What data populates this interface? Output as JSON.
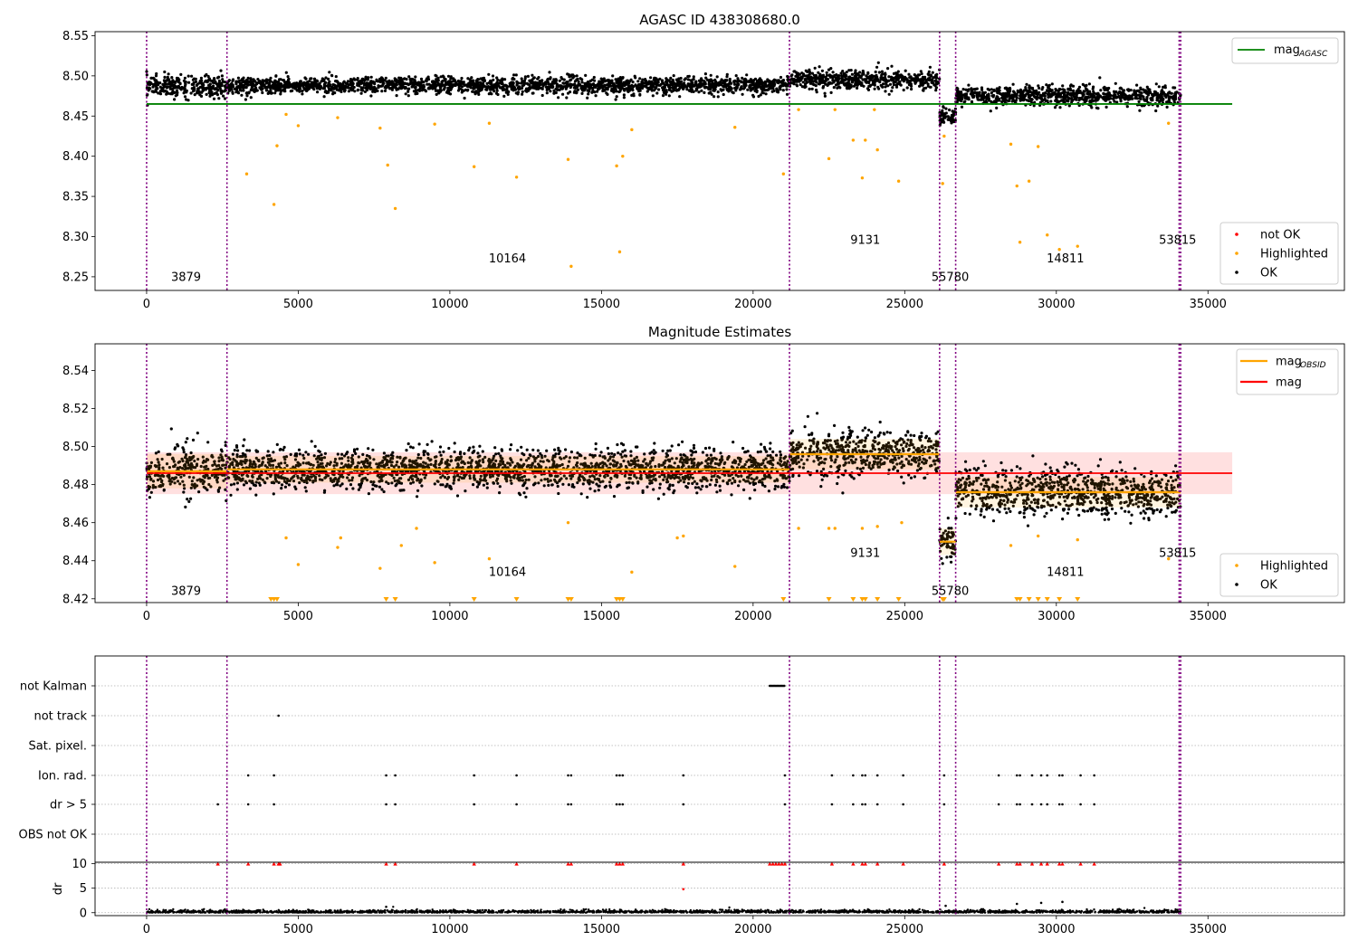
{
  "chart_data": [
    {
      "type": "scatter",
      "title": "AGASC ID 438308680.0",
      "xlim": [
        -1700,
        39500
      ],
      "ylim": [
        8.233,
        8.555
      ],
      "xticks": [
        0,
        5000,
        10000,
        15000,
        20000,
        25000,
        30000,
        35000
      ],
      "yticks": [
        8.25,
        8.3,
        8.35,
        8.4,
        8.45,
        8.5,
        8.55
      ],
      "ytick_labels": [
        "8.25",
        "8.30",
        "8.35",
        "8.40",
        "8.45",
        "8.50",
        "8.55"
      ],
      "vlines": [
        0,
        2650,
        21200,
        26150,
        26680,
        34050,
        34100
      ],
      "hline": {
        "name": "mag_AGASC",
        "y": 8.465,
        "x_range": [
          0,
          35800
        ],
        "color": "#008000"
      },
      "obs_segments": [
        {
          "x0": 0,
          "x1": 2650,
          "level": 8.487,
          "spread": 0.009
        },
        {
          "x0": 2650,
          "x1": 21200,
          "level": 8.488,
          "spread": 0.007
        },
        {
          "x0": 21200,
          "x1": 26150,
          "level": 8.495,
          "spread": 0.008
        },
        {
          "x0": 26150,
          "x1": 26680,
          "level": 8.45,
          "spread": 0.007
        },
        {
          "x0": 26680,
          "x1": 34100,
          "level": 8.475,
          "spread": 0.008
        }
      ],
      "highlighted_points": [
        [
          3300,
          8.378
        ],
        [
          4200,
          8.34
        ],
        [
          4300,
          8.413
        ],
        [
          4600,
          8.452
        ],
        [
          5000,
          8.438
        ],
        [
          6300,
          8.448
        ],
        [
          7700,
          8.435
        ],
        [
          7950,
          8.389
        ],
        [
          8200,
          8.335
        ],
        [
          9500,
          8.44
        ],
        [
          10800,
          8.387
        ],
        [
          11300,
          8.441
        ],
        [
          12200,
          8.374
        ],
        [
          13900,
          8.396
        ],
        [
          14000,
          8.263
        ],
        [
          15500,
          8.388
        ],
        [
          15600,
          8.281
        ],
        [
          15700,
          8.4
        ],
        [
          16000,
          8.433
        ],
        [
          19400,
          8.436
        ],
        [
          21000,
          8.378
        ],
        [
          21500,
          8.458
        ],
        [
          22500,
          8.397
        ],
        [
          22700,
          8.458
        ],
        [
          23300,
          8.42
        ],
        [
          23600,
          8.373
        ],
        [
          23700,
          8.42
        ],
        [
          24100,
          8.408
        ],
        [
          24000,
          8.458
        ],
        [
          24800,
          8.369
        ],
        [
          26300,
          8.425
        ],
        [
          26250,
          8.366
        ],
        [
          28500,
          8.415
        ],
        [
          28700,
          8.363
        ],
        [
          28800,
          8.293
        ],
        [
          29100,
          8.369
        ],
        [
          29400,
          8.412
        ],
        [
          29700,
          8.302
        ],
        [
          30100,
          8.284
        ],
        [
          30700,
          8.288
        ],
        [
          33700,
          8.441
        ]
      ],
      "annotations": [
        {
          "text": "3879",
          "x": 1300,
          "y": 8.245
        },
        {
          "text": "10164",
          "x": 11900,
          "y": 8.268
        },
        {
          "text": "9131",
          "x": 23700,
          "y": 8.291
        },
        {
          "text": "55780",
          "x": 26500,
          "y": 8.245
        },
        {
          "text": "14811",
          "x": 30300,
          "y": 8.268
        },
        {
          "text": "53815",
          "x": 34000,
          "y": 8.291
        }
      ],
      "legend_top": [
        {
          "label": "mag",
          "sub": "AGASC",
          "color": "#008000"
        }
      ],
      "legend_bottom": [
        {
          "label": "not OK",
          "color": "#ff0000"
        },
        {
          "label": "Highlighted",
          "color": "#ffa500"
        },
        {
          "label": "OK",
          "color": "#000000"
        }
      ]
    },
    {
      "type": "scatter",
      "title": "Magnitude Estimates",
      "xlim": [
        -1700,
        39500
      ],
      "ylim": [
        8.418,
        8.554
      ],
      "xticks": [
        0,
        5000,
        10000,
        15000,
        20000,
        25000,
        30000,
        35000
      ],
      "yticks": [
        8.42,
        8.44,
        8.46,
        8.48,
        8.5,
        8.52,
        8.54
      ],
      "ytick_labels": [
        "8.42",
        "8.44",
        "8.46",
        "8.48",
        "8.50",
        "8.52",
        "8.54"
      ],
      "vlines": [
        0,
        2650,
        21200,
        26150,
        26680,
        34050,
        34100
      ],
      "mag": {
        "name": "mag",
        "y": 8.486,
        "band": [
          8.475,
          8.497
        ],
        "x_range": [
          0,
          35800
        ],
        "color": "#ff0000"
      },
      "obs_segments": [
        {
          "x0": 0,
          "x1": 2650,
          "level": 8.487,
          "spread": 0.009
        },
        {
          "x0": 2650,
          "x1": 21200,
          "level": 8.488,
          "spread": 0.007
        },
        {
          "x0": 21200,
          "x1": 26150,
          "level": 8.496,
          "spread": 0.008
        },
        {
          "x0": 26150,
          "x1": 26680,
          "level": 8.45,
          "spread": 0.007
        },
        {
          "x0": 26680,
          "x1": 34100,
          "level": 8.476,
          "spread": 0.008
        }
      ],
      "highlighted_points": [
        [
          4600,
          8.452
        ],
        [
          5000,
          8.438
        ],
        [
          6300,
          8.447
        ],
        [
          6400,
          8.452
        ],
        [
          7700,
          8.436
        ],
        [
          8400,
          8.448
        ],
        [
          8900,
          8.457
        ],
        [
          9500,
          8.439
        ],
        [
          11300,
          8.441
        ],
        [
          13900,
          8.46
        ],
        [
          16000,
          8.434
        ],
        [
          17500,
          8.452
        ],
        [
          17700,
          8.453
        ],
        [
          19400,
          8.437
        ],
        [
          21500,
          8.457
        ],
        [
          22500,
          8.457
        ],
        [
          22700,
          8.457
        ],
        [
          23600,
          8.457
        ],
        [
          24100,
          8.458
        ],
        [
          24900,
          8.46
        ],
        [
          28500,
          8.448
        ],
        [
          29400,
          8.453
        ],
        [
          30700,
          8.451
        ],
        [
          33700,
          8.441
        ]
      ],
      "below_range_x": [
        4100,
        4200,
        4300,
        7900,
        8200,
        10800,
        12200,
        13900,
        14000,
        15500,
        15600,
        15700,
        21000,
        22500,
        23300,
        23600,
        23700,
        24100,
        24800,
        26250,
        26300,
        28700,
        28800,
        29100,
        29400,
        29700,
        30100,
        30700
      ],
      "annotations": [
        {
          "text": "3879",
          "x": 1300,
          "y": 8.422
        },
        {
          "text": "10164",
          "x": 11900,
          "y": 8.432
        },
        {
          "text": "9131",
          "x": 23700,
          "y": 8.442
        },
        {
          "text": "55780",
          "x": 26500,
          "y": 8.422
        },
        {
          "text": "14811",
          "x": 30300,
          "y": 8.432
        },
        {
          "text": "53815",
          "x": 34000,
          "y": 8.442
        }
      ],
      "legend_top": [
        {
          "label": "mag",
          "sub": "OBSID",
          "color": "#ffa500"
        },
        {
          "label": "mag",
          "sub": "",
          "color": "#ff0000"
        }
      ],
      "legend_bottom": [
        {
          "label": "Highlighted",
          "color": "#ffa500"
        },
        {
          "label": "OK",
          "color": "#000000"
        }
      ]
    },
    {
      "type": "scatter",
      "xlim": [
        -1700,
        39500
      ],
      "xticks": [
        0,
        5000,
        10000,
        15000,
        20000,
        25000,
        30000,
        35000
      ],
      "vlines": [
        0,
        2650,
        21200,
        26150,
        26680,
        34050,
        34100
      ],
      "flag_rows": [
        "not Kalman",
        "not track",
        "Sat. pixel.",
        "Ion. rad.",
        "dr > 5",
        "OBS not OK"
      ],
      "flags": {
        "not Kalman": {
          "ranges": [
            [
              20550,
              21050
            ]
          ],
          "points": []
        },
        "not track": {
          "ranges": [],
          "points": [
            4350
          ]
        },
        "Sat. pixel.": {
          "ranges": [],
          "points": []
        },
        "Ion. rad.": {
          "ranges": [],
          "points": [
            3350,
            4200,
            7900,
            8200,
            10800,
            12200,
            13900,
            14000,
            15500,
            15600,
            15700,
            17700,
            21050,
            22600,
            23300,
            23600,
            23700,
            24100,
            24950,
            26300,
            28100,
            28700,
            28800,
            29200,
            29500,
            29700,
            30100,
            30200,
            30800,
            31250
          ]
        },
        "dr > 5": {
          "ranges": [],
          "points": [
            2350,
            3350,
            4200,
            7900,
            8200,
            10800,
            12200,
            13900,
            14000,
            15500,
            15600,
            15700,
            17700,
            21050,
            22600,
            23300,
            23600,
            23700,
            24100,
            24950,
            26300,
            28100,
            28700,
            28800,
            29200,
            29500,
            29700,
            30100,
            30200,
            30800,
            31250
          ]
        },
        "OBS not OK": {
          "ranges": [],
          "points": []
        }
      },
      "dr_panel": {
        "ylabel": "dr",
        "ylim": [
          -0.6,
          10.3
        ],
        "yticks": [
          0,
          5,
          10
        ],
        "ytick_labels": [
          "0",
          "5",
          "10"
        ],
        "clipped_at": 10,
        "clipped_x": [
          2350,
          3350,
          4200,
          4350,
          4400,
          7900,
          8200,
          10800,
          12200,
          13900,
          14000,
          15500,
          15600,
          15700,
          17700,
          20550,
          20650,
          20750,
          20850,
          20950,
          21050,
          22600,
          23300,
          23600,
          23700,
          24100,
          24950,
          26300,
          28100,
          28700,
          28800,
          29200,
          29500,
          29700,
          30100,
          30200,
          30800,
          31250
        ],
        "other_points": [
          [
            17700,
            4.8
          ],
          [
            7900,
            1.2
          ],
          [
            26350,
            1.4
          ],
          [
            28700,
            1.8
          ],
          [
            29500,
            2.0
          ],
          [
            30200,
            2.2
          ],
          [
            20900,
            0.6
          ]
        ]
      }
    }
  ]
}
